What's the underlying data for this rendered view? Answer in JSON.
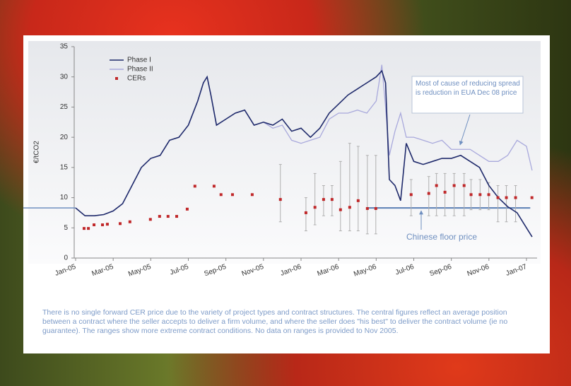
{
  "chart_data": {
    "type": "line",
    "y_label": "€/tCO2",
    "ylim": [
      0,
      35
    ],
    "yticks": [
      0,
      5,
      10,
      15,
      20,
      25,
      30,
      35
    ],
    "xlim": [
      0,
      24.3
    ],
    "xticks": [
      {
        "value": 0,
        "label": "Jan-05"
      },
      {
        "value": 2,
        "label": "Mar-05"
      },
      {
        "value": 4,
        "label": "May-05"
      },
      {
        "value": 6,
        "label": "Jul-05"
      },
      {
        "value": 8,
        "label": "Sep-05"
      },
      {
        "value": 10,
        "label": "Nov-05"
      },
      {
        "value": 12,
        "label": "Jan-06"
      },
      {
        "value": 14,
        "label": "Mar-06"
      },
      {
        "value": 16,
        "label": "May-06"
      },
      {
        "value": 18,
        "label": "Jul-06"
      },
      {
        "value": 20,
        "label": "Sep-06"
      },
      {
        "value": 22,
        "label": "Nov-06"
      },
      {
        "value": 24,
        "label": "Jan-07"
      }
    ],
    "x": [
      0,
      0.5,
      1,
      1.5,
      2,
      2.5,
      3,
      3.5,
      4,
      4.5,
      5,
      5.5,
      6,
      6.5,
      6.8,
      7,
      7.2,
      7.5,
      8,
      8.5,
      9,
      9.5,
      10,
      10.5,
      11,
      11.5,
      12,
      12.5,
      13,
      13.5,
      14,
      14.5,
      15,
      15.5,
      16,
      16.3,
      16.5,
      16.7,
      17,
      17.3,
      17.6,
      18,
      18.5,
      19,
      19.5,
      20,
      20.5,
      21,
      21.5,
      22,
      22.5,
      23,
      23.5,
      24,
      24.3
    ],
    "series": [
      {
        "name": "Phase I",
        "color": "#1f2a6b",
        "values": [
          8.3,
          7,
          7,
          7.2,
          7.8,
          9,
          12,
          15,
          16.5,
          17,
          19.5,
          20,
          22,
          26,
          29,
          30,
          27,
          22,
          23,
          24,
          24.5,
          22,
          22.5,
          22,
          23,
          21,
          21.5,
          20,
          21.5,
          24,
          25.5,
          27,
          28,
          29,
          30,
          31,
          29,
          13,
          12,
          9.5,
          19,
          16,
          15.5,
          16,
          16.5,
          16.5,
          17,
          16,
          15,
          12,
          10,
          8.5,
          7.5,
          5,
          3.5
        ]
      },
      {
        "name": "Phase II",
        "color": "#a9a9dc",
        "values": [
          8.3,
          7,
          7,
          7.2,
          7.8,
          9,
          12,
          15,
          16.5,
          17,
          19.5,
          20,
          22,
          26,
          29,
          30,
          27,
          22,
          23,
          24,
          24.5,
          22,
          22.5,
          21.5,
          22,
          19.5,
          19,
          19.5,
          20,
          23,
          24,
          24,
          24.5,
          24,
          26,
          32,
          25,
          17,
          21,
          24,
          20,
          20,
          19.5,
          19,
          19.5,
          18,
          18,
          18,
          17,
          16,
          16,
          17,
          19.5,
          18.5,
          14.5
        ]
      }
    ],
    "cers": {
      "name": "CERs",
      "color": "#c0282a",
      "x": [
        0.45,
        0.68,
        0.98,
        1.43,
        1.69,
        2.37,
        2.89,
        3.98,
        4.47,
        4.92,
        5.38,
        5.94,
        6.35,
        7.37,
        7.74,
        8.35,
        9.4,
        10.9,
        12.26,
        12.74,
        13.2,
        13.65,
        14.1,
        14.59,
        15.04,
        15.53,
        15.98,
        17.86,
        18.8,
        19.21,
        19.66,
        20.15,
        20.68,
        21.05,
        21.53,
        21.99,
        22.48,
        22.93,
        23.42,
        24.29
      ],
      "values": [
        4.9,
        4.9,
        5.5,
        5.5,
        5.6,
        5.7,
        6,
        6.4,
        6.9,
        6.9,
        6.9,
        8.1,
        11.9,
        11.9,
        10.5,
        10.5,
        10.5,
        9.7,
        7.5,
        8.4,
        9.7,
        9.7,
        8,
        8.4,
        9.5,
        8.2,
        8.2,
        10.5,
        10.7,
        12,
        10.9,
        12,
        12,
        10.5,
        10.5,
        10.5,
        10,
        10,
        10,
        10
      ],
      "low": [
        null,
        null,
        null,
        null,
        null,
        null,
        null,
        null,
        null,
        null,
        null,
        null,
        null,
        null,
        null,
        null,
        null,
        6,
        4.5,
        5.5,
        7,
        7,
        4.5,
        4.5,
        4.5,
        4,
        4,
        7,
        7,
        7,
        7,
        7,
        7,
        8,
        8,
        8,
        6,
        6,
        6,
        null
      ],
      "high": [
        null,
        null,
        null,
        null,
        null,
        null,
        null,
        null,
        null,
        null,
        null,
        null,
        null,
        null,
        null,
        null,
        null,
        15.5,
        10,
        14,
        12,
        12,
        16,
        19,
        18.5,
        17,
        17,
        13,
        13.5,
        14,
        14,
        14,
        14,
        13,
        13,
        12.5,
        12,
        12,
        12,
        null
      ]
    },
    "floor": {
      "label": "Chinese floor price",
      "value": 8.3,
      "from": 15.5,
      "to": 24.2
    },
    "annotation": "Most of cause of reducing spread is reduction in EUA Dec 08 price",
    "note": "There is no single forward CER price due to the variety of project types and contract structures.  The central figures reflect an average position between a contract where the seller accepts to deliver a firm volume, and where the seller does \"his best\" to deliver the contract volume (ie no guarantee).  The ranges show more extreme contract conditions.  No data on ranges is provided to Nov 2005."
  }
}
